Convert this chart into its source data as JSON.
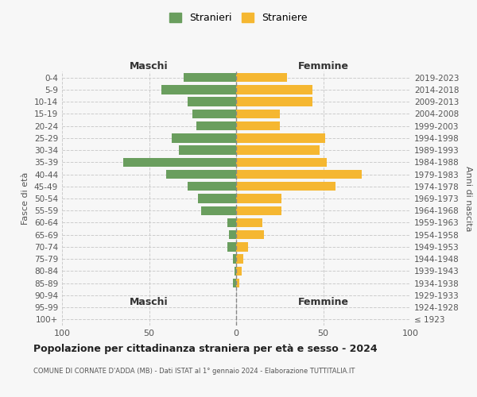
{
  "age_groups": [
    "100+",
    "95-99",
    "90-94",
    "85-89",
    "80-84",
    "75-79",
    "70-74",
    "65-69",
    "60-64",
    "55-59",
    "50-54",
    "45-49",
    "40-44",
    "35-39",
    "30-34",
    "25-29",
    "20-24",
    "15-19",
    "10-14",
    "5-9",
    "0-4"
  ],
  "birth_years": [
    "≤ 1923",
    "1924-1928",
    "1929-1933",
    "1934-1938",
    "1939-1943",
    "1944-1948",
    "1949-1953",
    "1954-1958",
    "1959-1963",
    "1964-1968",
    "1969-1973",
    "1974-1978",
    "1979-1983",
    "1984-1988",
    "1989-1993",
    "1994-1998",
    "1999-2003",
    "2004-2008",
    "2009-2013",
    "2014-2018",
    "2019-2023"
  ],
  "males": [
    0,
    0,
    0,
    2,
    1,
    2,
    5,
    4,
    5,
    20,
    22,
    28,
    40,
    65,
    33,
    37,
    23,
    25,
    28,
    43,
    30
  ],
  "females": [
    0,
    0,
    0,
    2,
    3,
    4,
    7,
    16,
    15,
    26,
    26,
    57,
    72,
    52,
    48,
    51,
    25,
    25,
    44,
    44,
    29
  ],
  "male_color": "#6a9e5e",
  "female_color": "#f5b731",
  "background_color": "#f7f7f7",
  "grid_color": "#cccccc",
  "title": "Popolazione per cittadinanza straniera per età e sesso - 2024",
  "subtitle": "COMUNE DI CORNATE D'ADDA (MB) - Dati ISTAT al 1° gennaio 2024 - Elaborazione TUTTITALIA.IT",
  "xlabel_left": "Maschi",
  "xlabel_right": "Femmine",
  "ylabel_left": "Fasce di età",
  "ylabel_right": "Anni di nascita",
  "legend_male": "Stranieri",
  "legend_female": "Straniere",
  "xlim": 100
}
